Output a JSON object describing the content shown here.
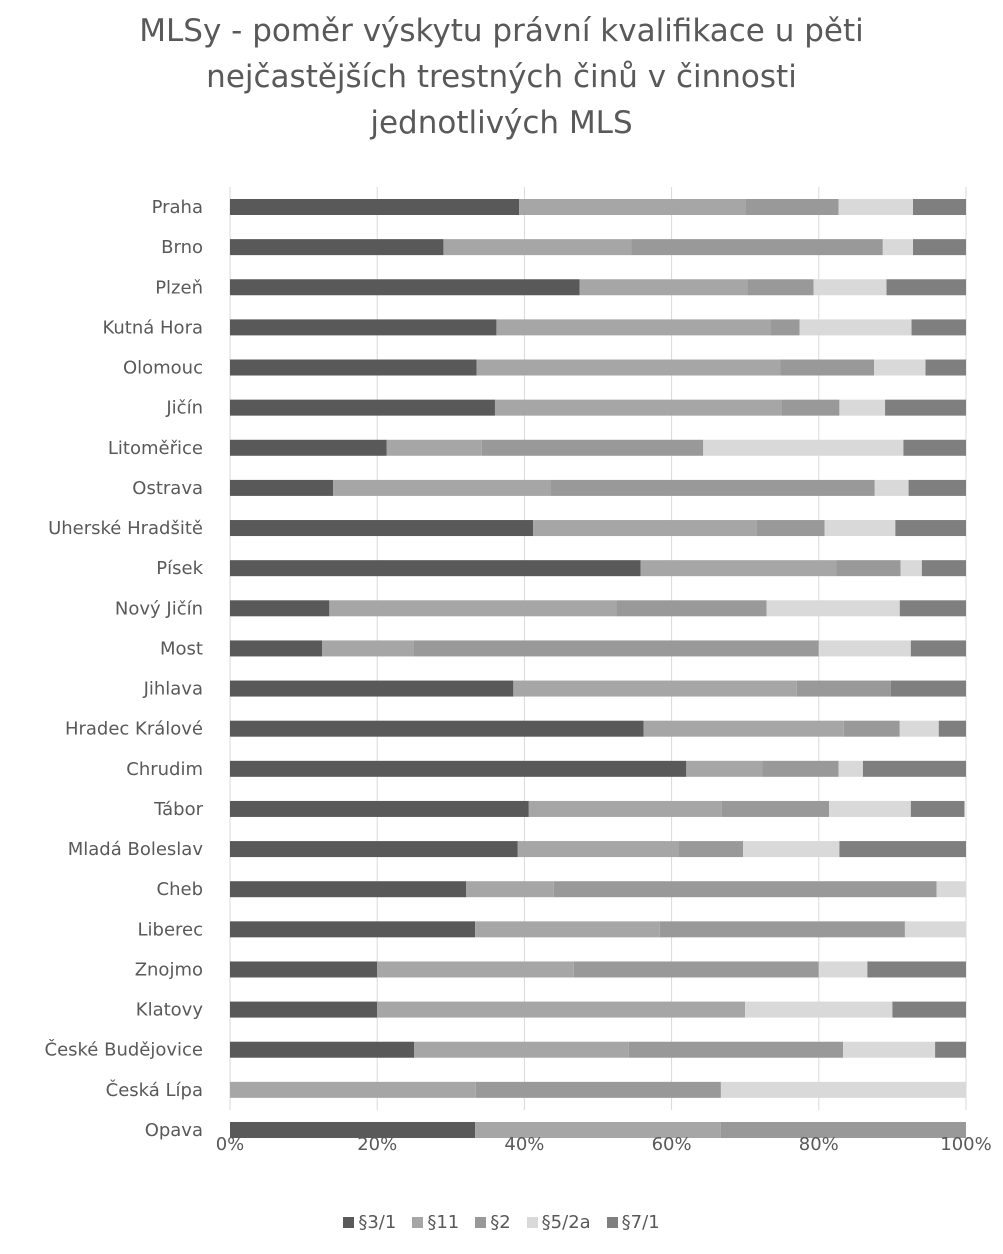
{
  "chart_data": {
    "type": "bar",
    "orientation": "horizontal",
    "stacked": "percent",
    "title_lines": [
      "MLSy - poměr výskytu právní kvalifikace u pěti",
      "nejčastějších trestných činů v činnosti",
      "jednotlivých MLS"
    ],
    "categories": [
      "Praha",
      "Brno",
      "Plzeň",
      "Kutná Hora",
      "Olomouc",
      "Jičín",
      "Litoměřice",
      "Ostrava",
      "Uherské Hradšitě",
      "Písek",
      "Nový Jičín",
      "Most",
      "Jihlava",
      "Hradec Králové",
      "Chrudim",
      "Tábor",
      "Mladá Boleslav",
      "Cheb",
      "Liberec",
      "Znojmo",
      "Klatovy",
      "České Budějovice",
      "Česká Lípa",
      "Opava"
    ],
    "series": [
      {
        "name": "§3/1",
        "color": "#595959",
        "values": [
          39.3,
          29,
          47.5,
          36.2,
          33.5,
          36,
          21.3,
          14,
          41.2,
          55.8,
          13.5,
          12.5,
          38.5,
          56.2,
          62,
          40.6,
          39.1,
          32.1,
          33.3,
          20,
          20,
          25,
          0,
          33.3
        ]
      },
      {
        "name": "§11",
        "color": "#a6a6a6",
        "values": [
          30.7,
          25.5,
          22.8,
          37.2,
          41.3,
          39,
          12.9,
          29.5,
          30.3,
          26.6,
          39,
          12.5,
          38.5,
          27.2,
          10.3,
          26.2,
          21.8,
          11.9,
          25.1,
          26.7,
          50,
          29.2,
          33.4,
          33.4
        ]
      },
      {
        "name": "§2",
        "color": "#999999",
        "values": [
          12.7,
          34.2,
          9,
          4,
          12.7,
          7.8,
          30.1,
          44.1,
          9.3,
          8.7,
          20.4,
          55,
          12.8,
          7.6,
          10.4,
          14.6,
          8.8,
          52,
          33.3,
          33.3,
          0,
          29.1,
          33.3,
          33.3
        ]
      },
      {
        "name": "§5/2a",
        "color": "#d9d9d9",
        "values": [
          10.1,
          4.1,
          9.9,
          15.2,
          7,
          6.2,
          27.2,
          4.6,
          9.6,
          2.9,
          18.1,
          12.5,
          0,
          5.3,
          3.3,
          11.1,
          13.1,
          4,
          8.3,
          6.6,
          20,
          12.5,
          33.3,
          0
        ]
      },
      {
        "name": "§7/1",
        "color": "#7f7f7f",
        "values": [
          7.2,
          7.2,
          10.8,
          7.4,
          5.5,
          11,
          8.5,
          7.8,
          9.6,
          6,
          9,
          7.5,
          10.2,
          3.7,
          14,
          7.3,
          17.2,
          0,
          0,
          13.4,
          10,
          4.2,
          0,
          0
        ]
      }
    ],
    "xaxis_ticks": [
      "0%",
      "20%",
      "40%",
      "60%",
      "80%",
      "100%"
    ],
    "xlim": [
      0,
      100
    ],
    "grid": "vertical",
    "legend": "bottom"
  }
}
